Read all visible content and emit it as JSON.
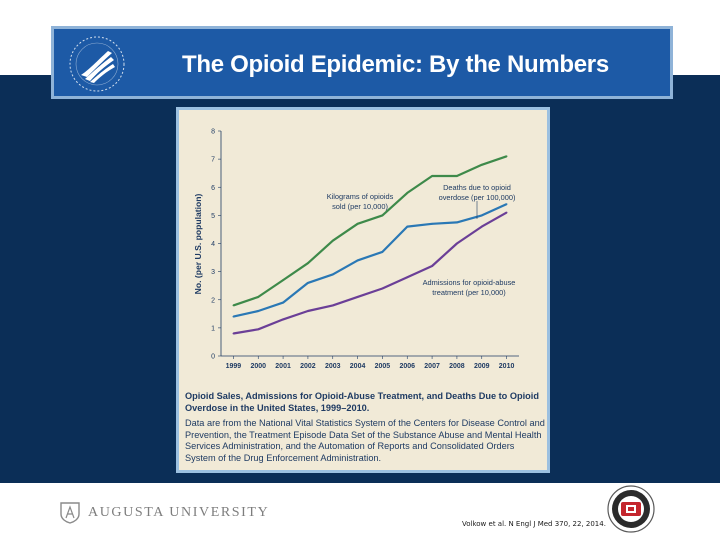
{
  "slide": {
    "title": "The Opioid Epidemic: By the Numbers",
    "university_name": "AUGUSTA UNIVERSITY",
    "citation": "Volkow et al. N Engl J Med 370, 22, 2014.",
    "colors": {
      "banner": "#1d5aa6",
      "background": "#0b2e57",
      "figure_bg": "#f1ead7",
      "figure_text": "#1f3b63"
    }
  },
  "logos": {
    "left": "hhs-eagle-logo",
    "right": "circular-seal-logo"
  },
  "caption": {
    "title": "Opioid Sales, Admissions for Opioid-Abuse Treatment, and Deaths Due to Opioid Overdose in the United States, 1999–2010.",
    "body": "Data are from the National Vital Statistics System of the Centers for Disease Control and Prevention, the Treatment Episode Data Set of the Substance Abuse and Mental Health Services Administration, and the Automation of Reports and Consolidated Orders System of the Drug Enforcement Administration."
  },
  "chart_data": {
    "type": "line",
    "ylabel": "No. (per U.S. population)",
    "xlabel": "",
    "x": [
      "1999",
      "2000",
      "2001",
      "2002",
      "2003",
      "2004",
      "2005",
      "2006",
      "2007",
      "2008",
      "2009",
      "2010"
    ],
    "ylim": [
      0,
      8
    ],
    "yticks": [
      0,
      1,
      2,
      3,
      4,
      5,
      6,
      7,
      8
    ],
    "grid": false,
    "series": [
      {
        "key": "kg",
        "color": "#3e8a4a",
        "values": [
          1.8,
          2.1,
          2.7,
          3.3,
          4.1,
          4.7,
          5.0,
          5.8,
          6.4,
          6.4,
          6.8,
          7.1
        ]
      },
      {
        "key": "deaths",
        "color": "#2a78b5",
        "values": [
          1.4,
          1.6,
          1.9,
          2.6,
          2.9,
          3.4,
          3.7,
          4.6,
          4.7,
          4.75,
          5.0,
          5.4
        ]
      },
      {
        "key": "admissions",
        "color": "#6b3f97",
        "values": [
          0.8,
          0.95,
          1.3,
          1.6,
          1.8,
          2.1,
          2.4,
          2.8,
          3.2,
          4.0,
          4.6,
          5.1
        ]
      }
    ],
    "annotations": [
      {
        "series": "kg",
        "lines": [
          "Kilograms of opioids",
          "sold (per 10,000)"
        ]
      },
      {
        "series": "deaths",
        "lines": [
          "Deaths due to opioid",
          "overdose (per 100,000)"
        ]
      },
      {
        "series": "admissions",
        "lines": [
          "Admissions for opioid-abuse",
          "treatment (per 10,000)"
        ]
      }
    ]
  }
}
